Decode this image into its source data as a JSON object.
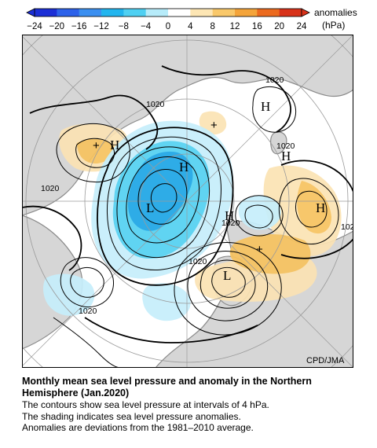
{
  "colorbar": {
    "ticks": [
      "−24",
      "−20",
      "−16",
      "−12",
      "−8",
      "−4",
      "0",
      "4",
      "8",
      "12",
      "16",
      "20",
      "24"
    ],
    "colors": [
      "#1c2fd6",
      "#2d62ea",
      "#3b8ff0",
      "#22b5ee",
      "#4fd0f2",
      "#b7ecfa",
      "#ffffff",
      "#fde6b4",
      "#f9c86a",
      "#f4a43a",
      "#ec6a1e",
      "#d8321a"
    ],
    "label": "anomalies",
    "unit": "(hPa)"
  },
  "map": {
    "attribution": "CPD/JMA",
    "palette": {
      "ocean": "#ffffff",
      "land_outline": "#8a8a8a",
      "neg_light": "#c6eefb",
      "neg_mid": "#55d1f2",
      "neg_strong": "#1fa6e6",
      "pos_light": "#fbe3b4",
      "pos_mid": "#f7c35f",
      "pos_strong": "#f29f3a"
    },
    "contour_labels": {
      "c1": "1020",
      "c2": "1020",
      "c3": "1020",
      "c4": "1020",
      "c5": "1020",
      "c6": "1020",
      "c7": "102"
    },
    "centers": {
      "h1": "H",
      "h2": "H",
      "h3": "H",
      "h4": "H",
      "h5": "H",
      "h6": "H",
      "l1": "L",
      "l2": "L"
    },
    "markers": {
      "m1": "+",
      "m2": "+",
      "m3": "+"
    }
  },
  "caption": {
    "title": "Monthly mean sea level pressure and anomaly in the Northern Hemisphere (Jan.2020)",
    "lines": [
      "The contours show sea level pressure at intervals of 4 hPa.",
      "The shading indicates sea level pressure anomalies.",
      "Anomalies are deviations from the 1981–2010 average."
    ]
  }
}
